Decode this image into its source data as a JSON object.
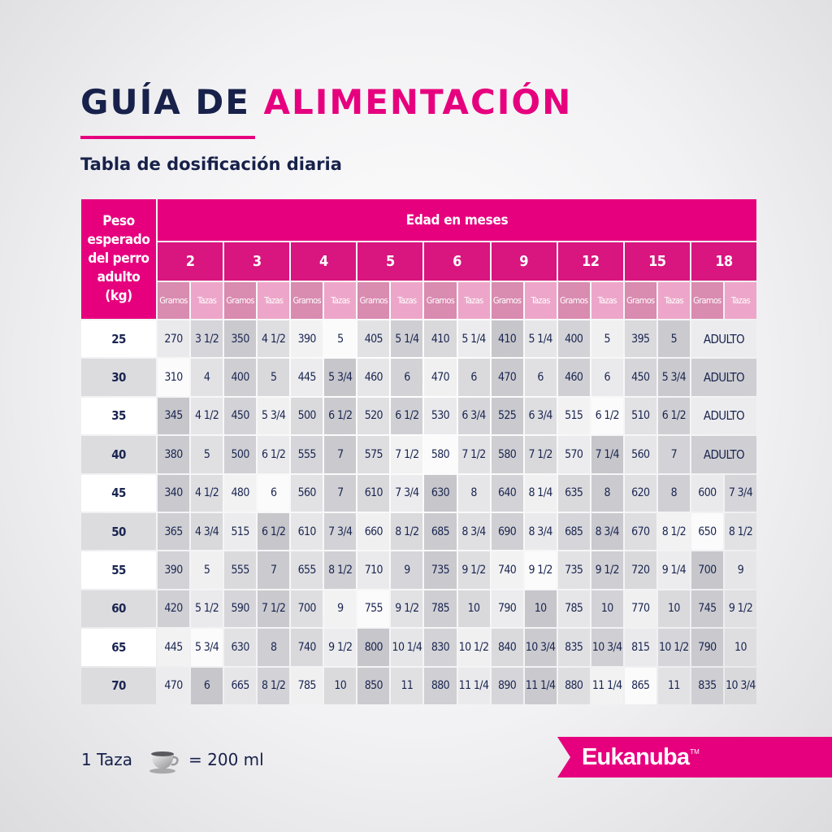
{
  "header": {
    "title_part1": "GUÍA DE",
    "title_part2": "ALIMENTACIÓN",
    "subtitle": "Tabla de dosificación diaria"
  },
  "table": {
    "weight_header": "Peso\nesperado\ndel perro\nadulto\n(kg)",
    "age_header": "Edad en meses",
    "months": [
      "2",
      "3",
      "4",
      "5",
      "6",
      "9",
      "12",
      "15",
      "18"
    ],
    "sub_headers": [
      "Gramos",
      "Tazas"
    ],
    "rows": [
      {
        "kg": "25",
        "values": [
          "270",
          "3 1/2",
          "350",
          "4 1/2",
          "390",
          "5",
          "405",
          "5 1/4",
          "410",
          "5 1/4",
          "410",
          "5 1/4",
          "400",
          "5",
          "395",
          "5"
        ],
        "adult": "ADULTO"
      },
      {
        "kg": "30",
        "values": [
          "310",
          "4",
          "400",
          "5",
          "445",
          "5 3/4",
          "460",
          "6",
          "470",
          "6",
          "470",
          "6",
          "460",
          "6",
          "450",
          "5 3/4"
        ],
        "adult": "ADULTO"
      },
      {
        "kg": "35",
        "values": [
          "345",
          "4 1/2",
          "450",
          "5 3/4",
          "500",
          "6 1/2",
          "520",
          "6 1/2",
          "530",
          "6 3/4",
          "525",
          "6 3/4",
          "515",
          "6 1/2",
          "510",
          "6 1/2"
        ],
        "adult": "ADULTO"
      },
      {
        "kg": "40",
        "values": [
          "380",
          "5",
          "500",
          "6 1/2",
          "555",
          "7",
          "575",
          "7 1/2",
          "580",
          "7 1/2",
          "580",
          "7 1/2",
          "570",
          "7 1/4",
          "560",
          "7"
        ],
        "adult": "ADULTO"
      },
      {
        "kg": "45",
        "values": [
          "340",
          "4 1/2",
          "480",
          "6",
          "560",
          "7",
          "610",
          "7 3/4",
          "630",
          "8",
          "640",
          "8 1/4",
          "635",
          "8",
          "620",
          "8",
          "600",
          "7 3/4"
        ]
      },
      {
        "kg": "50",
        "values": [
          "365",
          "4 3/4",
          "515",
          "6 1/2",
          "610",
          "7 3/4",
          "660",
          "8 1/2",
          "685",
          "8 3/4",
          "690",
          "8 3/4",
          "685",
          "8 3/4",
          "670",
          "8 1/2",
          "650",
          "8 1/2"
        ]
      },
      {
        "kg": "55",
        "values": [
          "390",
          "5",
          "555",
          "7",
          "655",
          "8 1/2",
          "710",
          "9",
          "735",
          "9 1/2",
          "740",
          "9 1/2",
          "735",
          "9 1/2",
          "720",
          "9 1/4",
          "700",
          "9"
        ]
      },
      {
        "kg": "60",
        "values": [
          "420",
          "5 1/2",
          "590",
          "7 1/2",
          "700",
          "9",
          "755",
          "9 1/2",
          "785",
          "10",
          "790",
          "10",
          "785",
          "10",
          "770",
          "10",
          "745",
          "9 1/2"
        ]
      },
      {
        "kg": "65",
        "values": [
          "445",
          "5 3/4",
          "630",
          "8",
          "740",
          "9 1/2",
          "800",
          "10 1/4",
          "830",
          "10 1/2",
          "840",
          "10 3/4",
          "835",
          "10 3/4",
          "815",
          "10 1/2",
          "790",
          "10"
        ]
      },
      {
        "kg": "70",
        "values": [
          "470",
          "6",
          "665",
          "8 1/2",
          "785",
          "10",
          "850",
          "11",
          "880",
          "11 1/4",
          "890",
          "11 1/4",
          "880",
          "11 1/4",
          "865",
          "11",
          "835",
          "10 3/4"
        ]
      }
    ]
  },
  "footer": {
    "cup_text": "1 Taza",
    "cup_icon": "coffee-cup-icon",
    "equals_text": "= 200 ml",
    "brand": "Eukanuba",
    "brand_tm": "TM"
  },
  "colors": {
    "accent": "#e6007e",
    "navy": "#17214a",
    "sub_header_dark": "#d98bb0",
    "sub_header_light": "#eda6c9"
  }
}
